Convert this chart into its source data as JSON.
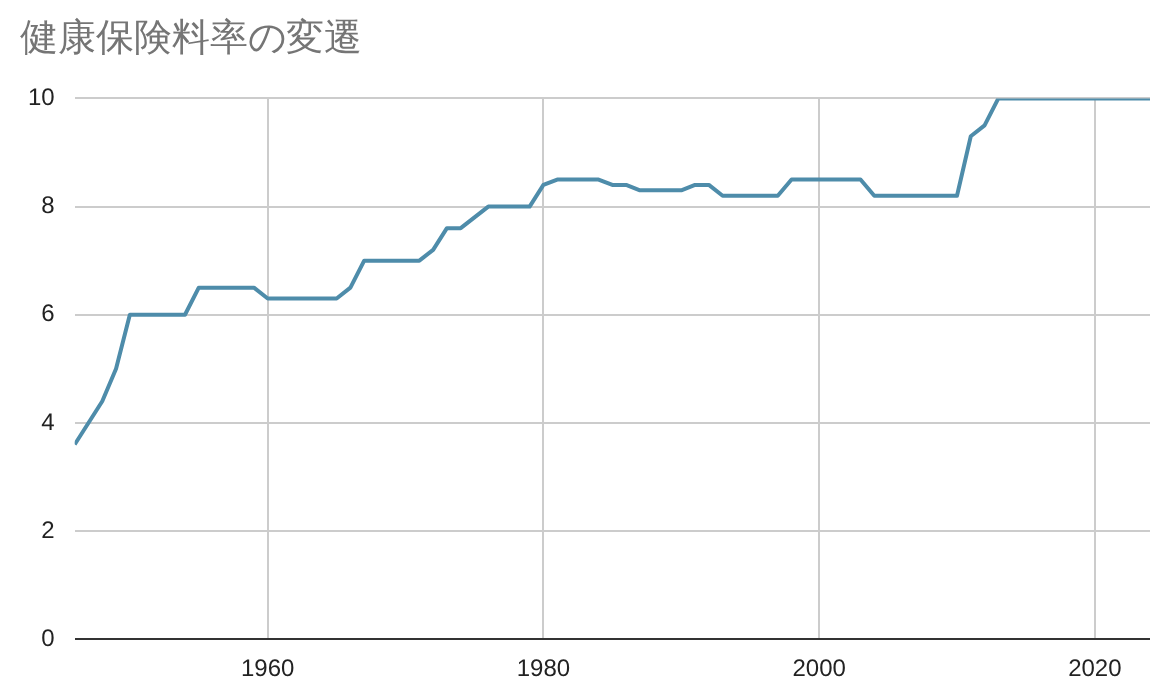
{
  "chart_data": {
    "type": "line",
    "title": "健康保険料率の変遷",
    "x": [
      1946,
      1948,
      1949,
      1950,
      1954,
      1955,
      1959,
      1960,
      1965,
      1966,
      1967,
      1971,
      1972,
      1973,
      1974,
      1975,
      1976,
      1979,
      1980,
      1981,
      1984,
      1985,
      1986,
      1987,
      1990,
      1991,
      1992,
      1993,
      1997,
      1998,
      2003,
      2004,
      2010,
      2011,
      2012,
      2013,
      2024
    ],
    "series": [
      {
        "color": "#4e8caa",
        "values": [
          3.6,
          4.4,
          5.0,
          6.0,
          6.0,
          6.5,
          6.5,
          6.3,
          6.3,
          6.5,
          7.0,
          7.0,
          7.2,
          7.6,
          7.6,
          7.8,
          8.0,
          8.0,
          8.4,
          8.5,
          8.5,
          8.4,
          8.4,
          8.3,
          8.3,
          8.4,
          8.4,
          8.2,
          8.2,
          8.5,
          8.5,
          8.2,
          8.2,
          9.3,
          9.5,
          10.0,
          10.0
        ]
      }
    ],
    "xlim": [
      1946,
      2024
    ],
    "xticks": [
      1960,
      1980,
      2000,
      2020
    ],
    "ylim": [
      0,
      10
    ],
    "yticks": [
      0,
      2,
      4,
      6,
      8,
      10
    ],
    "grid": true,
    "marker": "none",
    "line_style": "solid"
  }
}
